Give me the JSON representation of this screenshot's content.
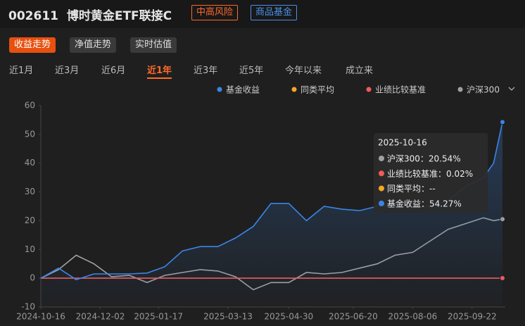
{
  "header": {
    "code": "002611",
    "name": "博时黄金ETF联接C",
    "tags": [
      "中高风险",
      "商品基金"
    ]
  },
  "tabs": [
    "收益走势",
    "净值走势",
    "实时估值"
  ],
  "periods": [
    "近1月",
    "近3月",
    "近6月",
    "近1年",
    "近3年",
    "近5年",
    "今年以来",
    "成立来"
  ],
  "chart_data": {
    "type": "line",
    "x": [
      "2024-10-16",
      "2024-10-30",
      "2024-11-13",
      "2024-11-27",
      "2024-12-11",
      "2024-12-25",
      "2025-01-08",
      "2025-01-22",
      "2025-02-05",
      "2025-02-19",
      "2025-03-05",
      "2025-03-19",
      "2025-04-02",
      "2025-04-16",
      "2025-04-30",
      "2025-05-14",
      "2025-05-28",
      "2025-06-11",
      "2025-06-25",
      "2025-07-09",
      "2025-07-23",
      "2025-08-06",
      "2025-08-20",
      "2025-09-03",
      "2025-09-17",
      "2025-10-01",
      "2025-10-09",
      "2025-10-16"
    ],
    "series": [
      {
        "name": "基金收益",
        "color": "#3a85e8",
        "values": [
          0,
          3.5,
          -0.5,
          1.5,
          1.5,
          1.5,
          1.8,
          4,
          9.5,
          11,
          11,
          14,
          18,
          26,
          26,
          20,
          25,
          24,
          23.5,
          25,
          26,
          24.5,
          25,
          27,
          32,
          35,
          40,
          54.27
        ]
      },
      {
        "name": "同类平均",
        "color": "#f5a623",
        "values": [
          null,
          null,
          null,
          null,
          null,
          null,
          null,
          null,
          null,
          null,
          null,
          null,
          null,
          null,
          null,
          null,
          null,
          null,
          null,
          null,
          null,
          null,
          null,
          null,
          null,
          null,
          null,
          null
        ]
      },
      {
        "name": "业绩比较基准",
        "color": "#f25a5a",
        "values": [
          0,
          0,
          0,
          0,
          0,
          0,
          0,
          0,
          0,
          0,
          0,
          0,
          0,
          0,
          0,
          0,
          0,
          0,
          0,
          0,
          0,
          0,
          0,
          0,
          0,
          0,
          0,
          0.02
        ]
      },
      {
        "name": "沪深300",
        "color": "#a0a0a0",
        "values": [
          0,
          3,
          8,
          5,
          0.5,
          1,
          -1.5,
          1,
          2,
          3,
          2.5,
          0.5,
          -4,
          -1.5,
          -1.5,
          2,
          1.5,
          2,
          3.5,
          5,
          8,
          9,
          13,
          17,
          19,
          21,
          20,
          20.54
        ]
      }
    ],
    "xlim": [
      "2024-10-16",
      "2025-10-16"
    ],
    "xticks": [
      "2024-10-16",
      "2024-12-02",
      "2025-01-17",
      "2025-03-13",
      "2025-04-30",
      "2025-06-20",
      "2025-08-06",
      "2025-09-22"
    ],
    "ylim": [
      -10,
      60
    ],
    "yticks": [
      -10,
      0,
      10,
      20,
      30,
      40,
      50,
      60
    ],
    "tooltip": {
      "date": "2025-10-16",
      "items": [
        "沪深300：20.54%",
        "业绩比较基准：0.02%",
        "同类平均：--",
        "基金收益：54.27%"
      ],
      "colors": [
        "#a0a0a0",
        "#f25a5a",
        "#f5a623",
        "#3a85e8"
      ]
    }
  }
}
